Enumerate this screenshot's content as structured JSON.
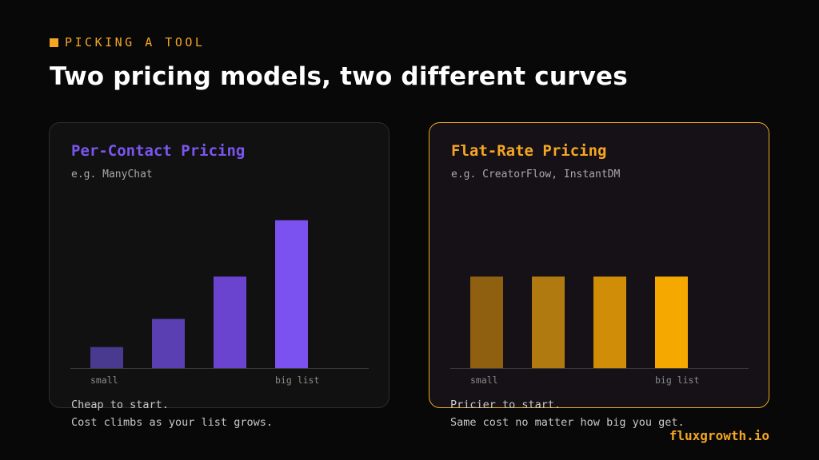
{
  "eyebrow": "PICKING A TOOL",
  "headline": "Two pricing models, two different curves",
  "colors": {
    "accent": "#f5a623",
    "purple_series": [
      "#4a3a8f",
      "#5a3fb3",
      "#6a44cf",
      "#7b52f0"
    ],
    "gold_series": [
      "#8f6010",
      "#b07a10",
      "#d08e08",
      "#f5a800"
    ]
  },
  "left_card": {
    "title": "Per-Contact Pricing",
    "subtitle": "e.g. ManyChat",
    "notes": [
      "Cheap to start.",
      "Cost climbs as your list grows."
    ]
  },
  "right_card": {
    "title": "Flat-Rate Pricing",
    "subtitle": "e.g. CreatorFlow, InstantDM",
    "notes": [
      "Pricier to start.",
      "Same cost no matter how big you get."
    ]
  },
  "brand": "fluxgrowth.io",
  "chart_data": [
    {
      "type": "bar",
      "title": "Per-Contact Pricing",
      "categories": [
        "small",
        "",
        "",
        "big list"
      ],
      "values": [
        15,
        35,
        65,
        105
      ],
      "ylim": [
        0,
        110
      ],
      "grid": false,
      "legend": "none"
    },
    {
      "type": "bar",
      "title": "Flat-Rate Pricing",
      "categories": [
        "small",
        "",
        "",
        "big list"
      ],
      "values": [
        65,
        65,
        65,
        65
      ],
      "ylim": [
        0,
        110
      ],
      "grid": false,
      "legend": "none"
    }
  ]
}
